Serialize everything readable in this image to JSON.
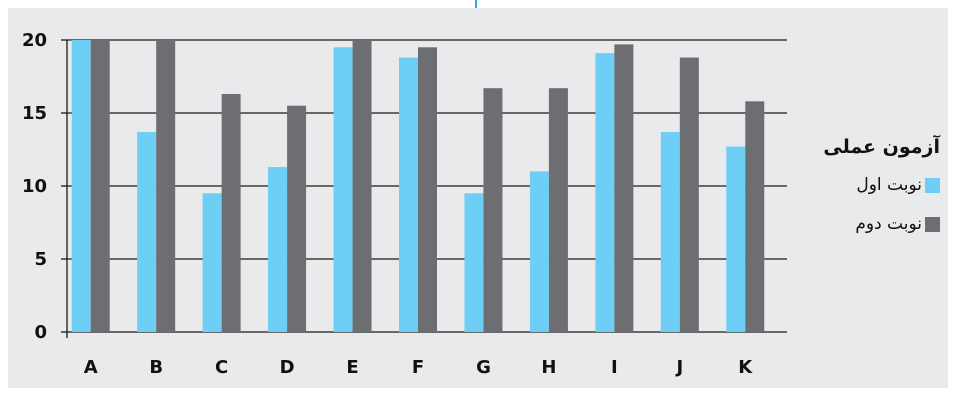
{
  "chart_data": {
    "type": "bar",
    "categories": [
      "A",
      "B",
      "C",
      "D",
      "E",
      "F",
      "G",
      "H",
      "I",
      "J",
      "K"
    ],
    "series": [
      {
        "name": "نوبت اول",
        "color": "#6dcff6",
        "values": [
          20,
          13.7,
          9.5,
          11.3,
          19.5,
          18.8,
          9.5,
          11,
          19.1,
          13.7,
          12.7
        ]
      },
      {
        "name": "نوبت دوم",
        "color": "#6d6e71",
        "values": [
          20,
          20,
          16.3,
          15.5,
          20,
          19.5,
          16.7,
          16.7,
          19.7,
          18.8,
          15.8
        ]
      }
    ],
    "ylim": [
      0,
      20
    ],
    "yticks": [
      0,
      5,
      10,
      15,
      20
    ],
    "legend_title": "آزمون عملی",
    "legend_position": "right",
    "grid": true,
    "title": "",
    "xlabel": "",
    "ylabel": ""
  }
}
